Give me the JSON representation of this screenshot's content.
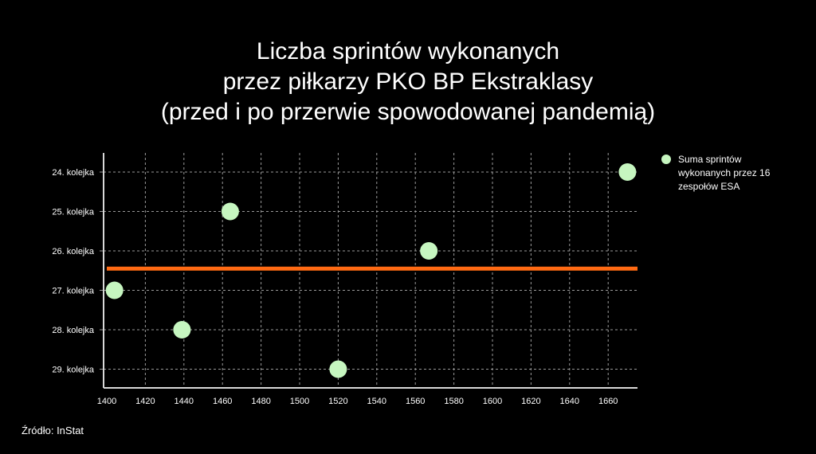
{
  "title_lines": [
    "Liczba sprintów wykonanych",
    "przez piłkarzy PKO BP Ekstraklasy",
    "(przed i po przerwie spowodowanej pandemią)"
  ],
  "source": "Źródło: InStat",
  "colors": {
    "background": "#000000",
    "points": "#c6f6c0",
    "reference_line": "#ff6a13",
    "grid": "#9a9a9a",
    "text": "#ffffff"
  },
  "chart_data": {
    "type": "scatter",
    "categories": [
      "24. kolejka",
      "25. kolejka",
      "26. kolejka",
      "27. kolejka",
      "28. kolejka",
      "29. kolejka"
    ],
    "series": [
      {
        "name": "Suma sprintów wykonanych przez 16 zespołów ESA",
        "points": [
          {
            "category": "24. kolejka",
            "x": 1670
          },
          {
            "category": "25. kolejka",
            "x": 1464
          },
          {
            "category": "26. kolejka",
            "x": 1567
          },
          {
            "category": "27. kolejka",
            "x": 1404
          },
          {
            "category": "28. kolejka",
            "x": 1439
          },
          {
            "category": "29. kolejka",
            "x": 1520
          }
        ]
      }
    ],
    "reference_line": {
      "category_position": 26.45
    },
    "xlim": [
      1400,
      1675
    ],
    "xticks": [
      1400,
      1420,
      1440,
      1460,
      1480,
      1500,
      1520,
      1540,
      1560,
      1580,
      1600,
      1620,
      1640,
      1660
    ],
    "grid": true,
    "legend_position": "right",
    "xlabel": "",
    "ylabel": ""
  }
}
